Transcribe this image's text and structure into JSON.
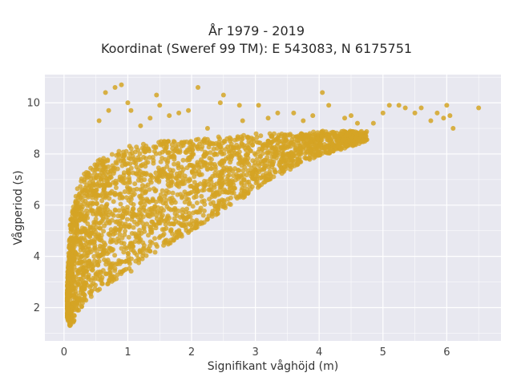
{
  "chart_data": {
    "type": "scatter",
    "title": "År 1979 - 2019",
    "subtitle": "Koordinat (Sweref 99 TM): E 543083, N 6175751",
    "xlabel": "Signifikant våghöjd (m)",
    "ylabel": "Vågperiod (s)",
    "xlim": [
      -0.3,
      6.85
    ],
    "ylim": [
      0.7,
      11.1
    ],
    "x_ticks": [
      0,
      1,
      2,
      3,
      4,
      5,
      6
    ],
    "y_ticks": [
      2,
      4,
      6,
      8,
      10
    ],
    "grid": true,
    "legend": "none",
    "colors": {
      "points": "#D4A424",
      "plot_bg": "#E8E8F0",
      "grid": "#ffffff"
    },
    "series": [
      {
        "envelope": {
          "x": [
            0.05,
            0.1,
            0.2,
            0.3,
            0.5,
            0.75,
            1.0,
            1.25,
            1.5,
            1.75,
            2.0,
            2.25,
            2.5,
            2.75,
            3.0,
            3.25,
            3.5,
            3.75,
            4.0,
            4.25,
            4.5,
            4.75
          ],
          "y_low": [
            1.6,
            1.2,
            1.7,
            2.1,
            2.6,
            3.0,
            3.3,
            3.8,
            4.3,
            4.6,
            5.0,
            5.4,
            5.8,
            6.2,
            6.6,
            7.0,
            7.3,
            7.7,
            7.9,
            8.1,
            8.3,
            8.5
          ],
          "y_high": [
            3.0,
            5.5,
            6.6,
            7.2,
            7.7,
            8.1,
            8.3,
            8.4,
            8.5,
            8.5,
            8.6,
            8.6,
            8.7,
            8.7,
            8.8,
            8.8,
            8.8,
            8.8,
            8.9,
            8.9,
            8.9,
            8.9
          ]
        },
        "outliers": [
          [
            0.65,
            10.4
          ],
          [
            0.8,
            10.6
          ],
          [
            0.9,
            10.7
          ],
          [
            1.0,
            10.0
          ],
          [
            1.05,
            9.7
          ],
          [
            1.45,
            10.3
          ],
          [
            1.5,
            9.9
          ],
          [
            1.65,
            9.5
          ],
          [
            1.8,
            9.6
          ],
          [
            1.95,
            9.7
          ],
          [
            2.1,
            10.6
          ],
          [
            2.45,
            10.0
          ],
          [
            2.5,
            10.3
          ],
          [
            2.75,
            9.9
          ],
          [
            2.8,
            9.3
          ],
          [
            3.05,
            9.9
          ],
          [
            3.2,
            9.4
          ],
          [
            3.35,
            9.6
          ],
          [
            3.6,
            9.6
          ],
          [
            3.9,
            9.5
          ],
          [
            4.05,
            10.4
          ],
          [
            4.15,
            9.9
          ],
          [
            4.4,
            9.4
          ],
          [
            4.5,
            9.5
          ],
          [
            4.6,
            9.2
          ],
          [
            4.85,
            9.2
          ],
          [
            5.1,
            9.9
          ],
          [
            5.25,
            9.9
          ],
          [
            5.35,
            9.8
          ],
          [
            5.5,
            9.6
          ],
          [
            5.6,
            9.8
          ],
          [
            5.75,
            9.3
          ],
          [
            5.85,
            9.6
          ],
          [
            5.95,
            9.4
          ],
          [
            6.0,
            9.9
          ],
          [
            6.05,
            9.5
          ],
          [
            6.1,
            9.0
          ],
          [
            6.5,
            9.8
          ],
          [
            0.55,
            9.3
          ],
          [
            1.2,
            9.1
          ],
          [
            2.25,
            9.0
          ],
          [
            0.7,
            9.7
          ],
          [
            1.35,
            9.4
          ],
          [
            3.75,
            9.3
          ],
          [
            5.0,
            9.6
          ]
        ]
      }
    ]
  }
}
